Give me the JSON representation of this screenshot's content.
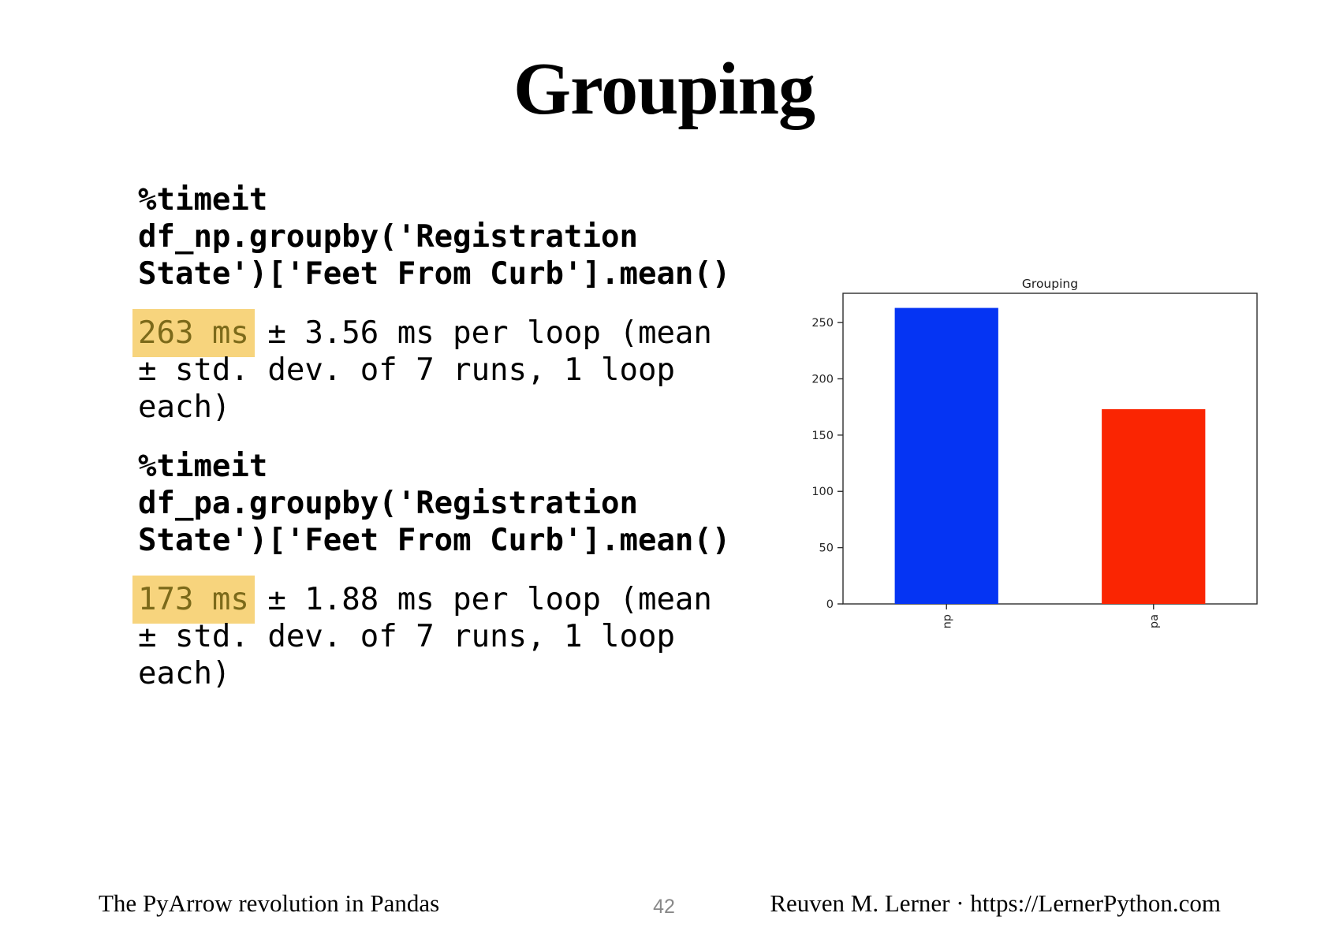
{
  "slide": {
    "title": "Grouping",
    "footer": {
      "left": "The PyArrow revolution in Pandas",
      "page_number": "42",
      "right": "Reuven M. Lerner · https://LernerPython.com"
    }
  },
  "code_blocks": [
    {
      "code": "%timeit df_np.groupby('Registration State')['Feet From Curb'].mean()",
      "output_highlight": "263 ms",
      "output_rest": " ± 3.56 ms per loop (mean ± std. dev. of 7 runs, 1 loop each)"
    },
    {
      "code": "%timeit df_pa.groupby('Registration State')['Feet From Curb'].mean()",
      "output_highlight": "173 ms",
      "output_rest": " ± 1.88 ms per loop (mean ± std. dev. of 7 runs, 1 loop each)"
    }
  ],
  "colors": {
    "highlight_bg": "#f7d47d",
    "highlight_text": "#7c6a1a",
    "axis": "#2e2e2e",
    "tick_label": "#262626"
  },
  "chart_data": {
    "type": "bar",
    "title": "Grouping",
    "categories": [
      "np",
      "pa"
    ],
    "values": [
      263,
      173
    ],
    "bar_colors": [
      "#0534f3",
      "#fa2502"
    ],
    "yticks": [
      0,
      50,
      100,
      150,
      200,
      250
    ],
    "ylim": [
      0,
      276
    ],
    "xlabel": "",
    "ylabel": "",
    "grid": false,
    "legend": "none",
    "x_tick_label_rotation": 90,
    "bar_width_fraction": 0.25
  }
}
